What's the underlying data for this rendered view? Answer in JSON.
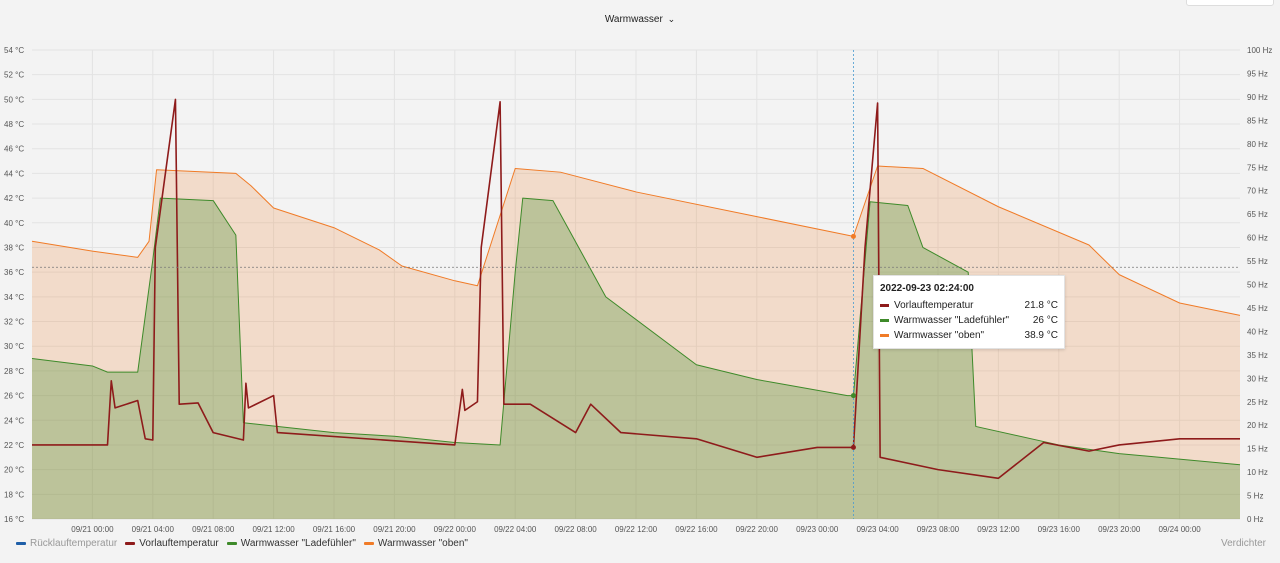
{
  "header": {
    "title": "Warmwasser",
    "chevron": "⌄"
  },
  "legend": {
    "items": [
      {
        "label": "Rücklauftemperatur",
        "color": "#1f5fa8",
        "hidden": true
      },
      {
        "label": "Vorlauftemperatur",
        "color": "#8e1b1b",
        "hidden": false
      },
      {
        "label": "Warmwasser \"Ladefühler\"",
        "color": "#3e8a2a",
        "hidden": false
      },
      {
        "label": "Warmwasser \"oben\"",
        "color": "#f07b27",
        "hidden": false
      }
    ],
    "right_label": "Verdichter"
  },
  "tooltip": {
    "time": "2022-09-23 02:24:00",
    "rows": [
      {
        "name": "Vorlauftemperatur",
        "value": "21.8 °C",
        "color": "#8e1b1b"
      },
      {
        "name": "Warmwasser \"Ladefühler\"",
        "value": "26 °C",
        "color": "#3e8a2a"
      },
      {
        "name": "Warmwasser \"oben\"",
        "value": "38.9 °C",
        "color": "#f07b27"
      }
    ]
  },
  "chart_data": {
    "type": "area",
    "title": "Warmwasser",
    "y_left": {
      "unit": "°C",
      "range": [
        16,
        54
      ],
      "ticks": [
        "16 °C",
        "18 °C",
        "20 °C",
        "22 °C",
        "24 °C",
        "26 °C",
        "28 °C",
        "30 °C",
        "32 °C",
        "34 °C",
        "36 °C",
        "38 °C",
        "40 °C",
        "42 °C",
        "44 °C",
        "46 °C",
        "48 °C",
        "50 °C",
        "52 °C",
        "54 °C"
      ]
    },
    "y_right": {
      "unit": "Hz",
      "range": [
        0,
        100
      ],
      "ticks": [
        "0 Hz",
        "5 Hz",
        "10 Hz",
        "15 Hz",
        "20 Hz",
        "25 Hz",
        "30 Hz",
        "35 Hz",
        "40 Hz",
        "45 Hz",
        "50 Hz",
        "55 Hz",
        "60 Hz",
        "65 Hz",
        "70 Hz",
        "75 Hz",
        "80 Hz",
        "85 Hz",
        "90 Hz",
        "95 Hz",
        "100 Hz"
      ]
    },
    "x_range": [
      "2022-09-20 20:00",
      "2022-09-24 04:00"
    ],
    "x_ticks": [
      "09/21 00:00",
      "09/21 04:00",
      "09/21 08:00",
      "09/21 12:00",
      "09/21 16:00",
      "09/21 20:00",
      "09/22 00:00",
      "09/22 04:00",
      "09/22 08:00",
      "09/22 12:00",
      "09/22 16:00",
      "09/22 20:00",
      "09/23 00:00",
      "09/23 04:00",
      "09/23 08:00",
      "09/23 12:00",
      "09/23 16:00",
      "09/23 20:00",
      "09/24 00:00"
    ],
    "grid": true,
    "legend_position": "bottom-left",
    "crosshair": {
      "x": "2022-09-23 02:24",
      "y": 36.4
    },
    "series": [
      {
        "name": "Warmwasser \"oben\"",
        "color": "#f07b27",
        "points": [
          [
            "09/20 20:00",
            38.5
          ],
          [
            "09/21 00:00",
            37.7
          ],
          [
            "09/21 03:00",
            37.2
          ],
          [
            "09/21 03:45",
            38.5
          ],
          [
            "09/21 04:15",
            44.3
          ],
          [
            "09/21 09:30",
            44.0
          ],
          [
            "09/21 10:30",
            43.0
          ],
          [
            "09/21 12:00",
            41.2
          ],
          [
            "09/21 16:00",
            39.6
          ],
          [
            "09/21 19:00",
            37.8
          ],
          [
            "09/21 20:30",
            36.5
          ],
          [
            "09/22 00:00",
            35.3
          ],
          [
            "09/22 01:30",
            34.9
          ],
          [
            "09/22 04:00",
            44.4
          ],
          [
            "09/22 07:00",
            44.1
          ],
          [
            "09/22 12:00",
            42.5
          ],
          [
            "09/22 20:00",
            40.5
          ],
          [
            "09/23 02:24",
            38.9
          ],
          [
            "09/23 04:00",
            44.6
          ],
          [
            "09/23 07:00",
            44.4
          ],
          [
            "09/23 12:00",
            41.3
          ],
          [
            "09/23 18:00",
            38.2
          ],
          [
            "09/23 20:00",
            35.8
          ],
          [
            "09/24 00:00",
            33.5
          ],
          [
            "09/24 04:00",
            32.5
          ]
        ]
      },
      {
        "name": "Warmwasser \"Ladefühler\"",
        "color": "#3e8a2a",
        "points": [
          [
            "09/20 20:00",
            29.0
          ],
          [
            "09/21 00:00",
            28.4
          ],
          [
            "09/21 01:00",
            27.9
          ],
          [
            "09/21 03:00",
            27.9
          ],
          [
            "09/21 04:00",
            37.0
          ],
          [
            "09/21 04:30",
            42.0
          ],
          [
            "09/21 08:00",
            41.8
          ],
          [
            "09/21 09:30",
            39.0
          ],
          [
            "09/21 10:00",
            23.8
          ],
          [
            "09/21 16:00",
            23.0
          ],
          [
            "09/21 20:00",
            22.7
          ],
          [
            "09/22 00:00",
            22.2
          ],
          [
            "09/22 03:00",
            22.0
          ],
          [
            "09/22 04:00",
            36.0
          ],
          [
            "09/22 04:30",
            42.0
          ],
          [
            "09/22 06:30",
            41.8
          ],
          [
            "09/22 10:00",
            34.0
          ],
          [
            "09/22 16:00",
            28.5
          ],
          [
            "09/22 20:00",
            27.3
          ],
          [
            "09/23 02:00",
            26.0
          ],
          [
            "09/23 02:24",
            26.0
          ],
          [
            "09/23 03:30",
            41.7
          ],
          [
            "09/23 06:00",
            41.4
          ],
          [
            "09/23 07:00",
            38.0
          ],
          [
            "09/23 10:00",
            36.0
          ],
          [
            "09/23 10:30",
            23.5
          ],
          [
            "09/23 16:00",
            22.0
          ],
          [
            "09/23 20:00",
            21.3
          ],
          [
            "09/24 04:00",
            20.4
          ]
        ]
      },
      {
        "name": "Vorlauftemperatur",
        "color": "#8e1b1b",
        "points": [
          [
            "09/20 20:00",
            22.0
          ],
          [
            "09/21 01:00",
            22.0
          ],
          [
            "09/21 01:15",
            27.2
          ],
          [
            "09/21 01:30",
            25.0
          ],
          [
            "09/21 03:00",
            25.6
          ],
          [
            "09/21 03:30",
            22.5
          ],
          [
            "09/21 04:00",
            22.4
          ],
          [
            "09/21 04:10",
            38.0
          ],
          [
            "09/21 05:30",
            50.0
          ],
          [
            "09/21 05:45",
            25.3
          ],
          [
            "09/21 07:00",
            25.4
          ],
          [
            "09/21 08:00",
            23.0
          ],
          [
            "09/21 10:00",
            22.4
          ],
          [
            "09/21 10:10",
            27.0
          ],
          [
            "09/21 10:20",
            25.0
          ],
          [
            "09/21 12:00",
            26.0
          ],
          [
            "09/21 12:15",
            23.0
          ],
          [
            "09/22 00:00",
            22.0
          ],
          [
            "09/22 00:30",
            26.5
          ],
          [
            "09/22 00:40",
            24.8
          ],
          [
            "09/22 01:30",
            25.5
          ],
          [
            "09/22 01:45",
            38.0
          ],
          [
            "09/22 03:00",
            49.8
          ],
          [
            "09/22 03:15",
            25.3
          ],
          [
            "09/22 05:00",
            25.3
          ],
          [
            "09/22 08:00",
            23.0
          ],
          [
            "09/22 09:00",
            25.3
          ],
          [
            "09/22 11:00",
            23.0
          ],
          [
            "09/22 16:00",
            22.5
          ],
          [
            "09/22 20:00",
            21.0
          ],
          [
            "09/23 00:00",
            21.8
          ],
          [
            "09/23 02:24",
            21.8
          ],
          [
            "09/23 03:10",
            38.0
          ],
          [
            "09/23 04:00",
            49.7
          ],
          [
            "09/23 04:10",
            21.0
          ],
          [
            "09/23 08:00",
            20.0
          ],
          [
            "09/23 12:00",
            19.3
          ],
          [
            "09/23 15:00",
            22.2
          ],
          [
            "09/23 18:00",
            21.5
          ],
          [
            "09/23 20:00",
            22.0
          ],
          [
            "09/24 00:00",
            22.5
          ],
          [
            "09/24 04:00",
            22.5
          ]
        ]
      }
    ]
  }
}
